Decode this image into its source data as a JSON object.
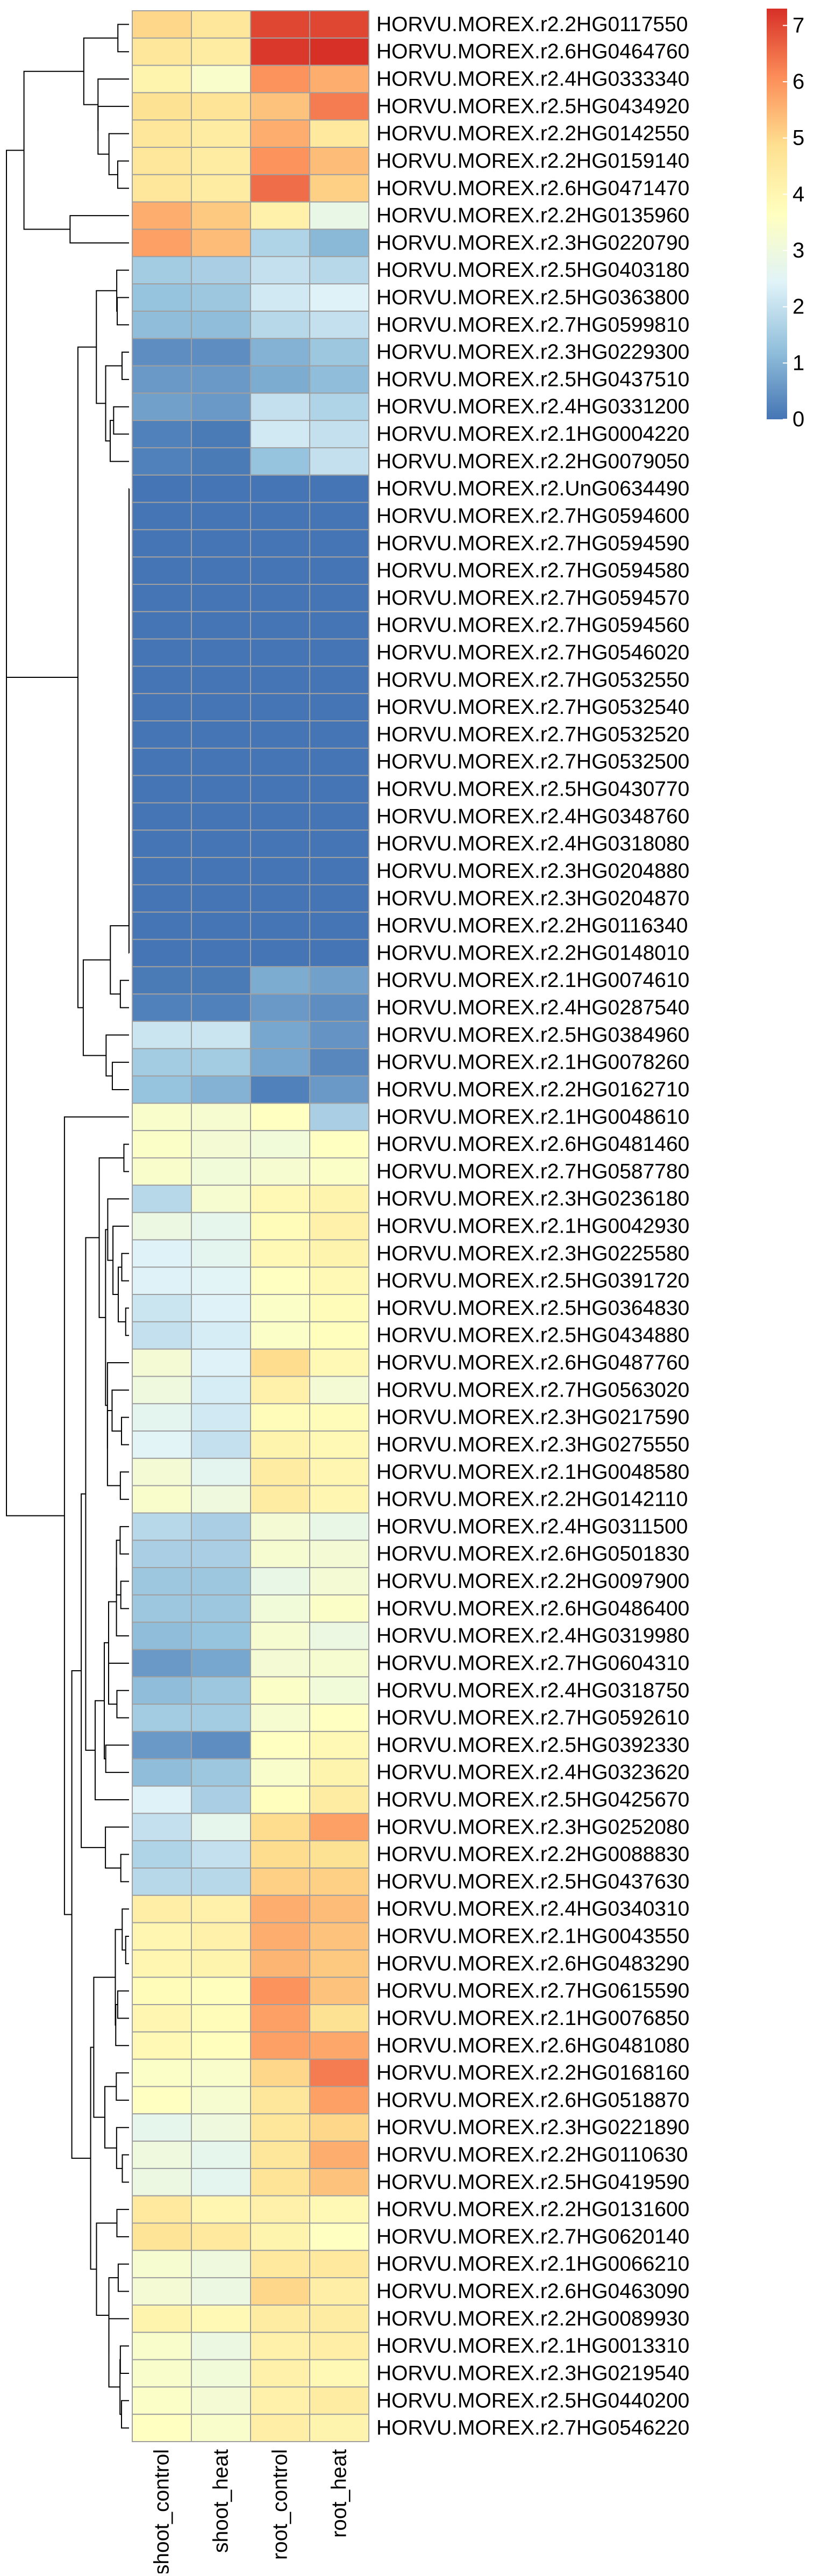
{
  "chart_data": {
    "type": "heatmap",
    "title": "",
    "xlabel": "",
    "ylabel": "",
    "columns": [
      "shoot_control",
      "shoot_heat",
      "root_control",
      "root_heat"
    ],
    "rows": [
      "HORVU.MOREX.r2.2HG0117550",
      "HORVU.MOREX.r2.6HG0464760",
      "HORVU.MOREX.r2.4HG0333340",
      "HORVU.MOREX.r2.5HG0434920",
      "HORVU.MOREX.r2.2HG0142550",
      "HORVU.MOREX.r2.2HG0159140",
      "HORVU.MOREX.r2.6HG0471470",
      "HORVU.MOREX.r2.2HG0135960",
      "HORVU.MOREX.r2.3HG0220790",
      "HORVU.MOREX.r2.5HG0403180",
      "HORVU.MOREX.r2.5HG0363800",
      "HORVU.MOREX.r2.7HG0599810",
      "HORVU.MOREX.r2.3HG0229300",
      "HORVU.MOREX.r2.5HG0437510",
      "HORVU.MOREX.r2.4HG0331200",
      "HORVU.MOREX.r2.1HG0004220",
      "HORVU.MOREX.r2.2HG0079050",
      "HORVU.MOREX.r2.UnG0634490",
      "HORVU.MOREX.r2.7HG0594600",
      "HORVU.MOREX.r2.7HG0594590",
      "HORVU.MOREX.r2.7HG0594580",
      "HORVU.MOREX.r2.7HG0594570",
      "HORVU.MOREX.r2.7HG0594560",
      "HORVU.MOREX.r2.7HG0546020",
      "HORVU.MOREX.r2.7HG0532550",
      "HORVU.MOREX.r2.7HG0532540",
      "HORVU.MOREX.r2.7HG0532520",
      "HORVU.MOREX.r2.7HG0532500",
      "HORVU.MOREX.r2.5HG0430770",
      "HORVU.MOREX.r2.4HG0348760",
      "HORVU.MOREX.r2.4HG0318080",
      "HORVU.MOREX.r2.3HG0204880",
      "HORVU.MOREX.r2.3HG0204870",
      "HORVU.MOREX.r2.2HG0116340",
      "HORVU.MOREX.r2.2HG0148010",
      "HORVU.MOREX.r2.1HG0074610",
      "HORVU.MOREX.r2.4HG0287540",
      "HORVU.MOREX.r2.5HG0384960",
      "HORVU.MOREX.r2.1HG0078260",
      "HORVU.MOREX.r2.2HG0162710",
      "HORVU.MOREX.r2.1HG0048610",
      "HORVU.MOREX.r2.6HG0481460",
      "HORVU.MOREX.r2.7HG0587780",
      "HORVU.MOREX.r2.3HG0236180",
      "HORVU.MOREX.r2.1HG0042930",
      "HORVU.MOREX.r2.3HG0225580",
      "HORVU.MOREX.r2.5HG0391720",
      "HORVU.MOREX.r2.5HG0364830",
      "HORVU.MOREX.r2.5HG0434880",
      "HORVU.MOREX.r2.6HG0487760",
      "HORVU.MOREX.r2.7HG0563020",
      "HORVU.MOREX.r2.3HG0217590",
      "HORVU.MOREX.r2.3HG0275550",
      "HORVU.MOREX.r2.1HG0048580",
      "HORVU.MOREX.r2.2HG0142110",
      "HORVU.MOREX.r2.4HG0311500",
      "HORVU.MOREX.r2.6HG0501830",
      "HORVU.MOREX.r2.2HG0097900",
      "HORVU.MOREX.r2.6HG0486400",
      "HORVU.MOREX.r2.4HG0319980",
      "HORVU.MOREX.r2.7HG0604310",
      "HORVU.MOREX.r2.4HG0318750",
      "HORVU.MOREX.r2.7HG0592610",
      "HORVU.MOREX.r2.5HG0392330",
      "HORVU.MOREX.r2.4HG0323620",
      "HORVU.MOREX.r2.5HG0425670",
      "HORVU.MOREX.r2.3HG0252080",
      "HORVU.MOREX.r2.2HG0088830",
      "HORVU.MOREX.r2.5HG0437630",
      "HORVU.MOREX.r2.4HG0340310",
      "HORVU.MOREX.r2.1HG0043550",
      "HORVU.MOREX.r2.6HG0483290",
      "HORVU.MOREX.r2.7HG0615590",
      "HORVU.MOREX.r2.1HG0076850",
      "HORVU.MOREX.r2.6HG0481080",
      "HORVU.MOREX.r2.2HG0168160",
      "HORVU.MOREX.r2.6HG0518870",
      "HORVU.MOREX.r2.3HG0221890",
      "HORVU.MOREX.r2.2HG0110630",
      "HORVU.MOREX.r2.5HG0419590",
      "HORVU.MOREX.r2.2HG0131600",
      "HORVU.MOREX.r2.7HG0620140",
      "HORVU.MOREX.r2.1HG0066210",
      "HORVU.MOREX.r2.6HG0463090",
      "HORVU.MOREX.r2.2HG0089930",
      "HORVU.MOREX.r2.1HG0013310",
      "HORVU.MOREX.r2.3HG0219540",
      "HORVU.MOREX.r2.5HG0440200",
      "HORVU.MOREX.r2.7HG0546220"
    ],
    "values": [
      [
        5.0,
        4.6,
        7.0,
        7.0
      ],
      [
        4.6,
        4.4,
        7.2,
        7.3
      ],
      [
        4.1,
        3.4,
        6.0,
        5.6
      ],
      [
        4.8,
        4.7,
        5.3,
        6.3
      ],
      [
        4.6,
        4.4,
        5.6,
        4.5
      ],
      [
        4.6,
        4.4,
        6.0,
        5.4
      ],
      [
        4.6,
        4.4,
        6.5,
        5.1
      ],
      [
        5.6,
        5.2,
        4.2,
        2.8
      ],
      [
        5.8,
        5.4,
        1.7,
        1.1
      ],
      [
        1.5,
        1.6,
        2.0,
        1.8
      ],
      [
        1.3,
        1.4,
        2.2,
        2.4
      ],
      [
        1.2,
        1.2,
        1.8,
        2.0
      ],
      [
        0.4,
        0.4,
        1.0,
        1.4
      ],
      [
        0.6,
        0.6,
        0.9,
        1.2
      ],
      [
        0.7,
        0.6,
        2.0,
        1.7
      ],
      [
        0.2,
        0.1,
        2.2,
        2.0
      ],
      [
        0.2,
        0.1,
        1.3,
        2.0
      ],
      [
        0,
        0,
        0,
        0
      ],
      [
        0,
        0,
        0,
        0
      ],
      [
        0,
        0,
        0,
        0
      ],
      [
        0,
        0,
        0,
        0
      ],
      [
        0,
        0,
        0,
        0
      ],
      [
        0,
        0,
        0,
        0
      ],
      [
        0,
        0,
        0,
        0
      ],
      [
        0,
        0,
        0,
        0
      ],
      [
        0,
        0,
        0,
        0
      ],
      [
        0,
        0,
        0,
        0
      ],
      [
        0,
        0,
        0,
        0
      ],
      [
        0,
        0,
        0,
        0
      ],
      [
        0,
        0,
        0,
        0
      ],
      [
        0,
        0,
        0,
        0
      ],
      [
        0,
        0,
        0,
        0
      ],
      [
        0,
        0,
        0,
        0
      ],
      [
        0,
        0,
        0,
        0
      ],
      [
        0,
        0,
        0,
        0
      ],
      [
        0.1,
        0.1,
        0.9,
        0.7
      ],
      [
        0.2,
        0.2,
        0.6,
        0.4
      ],
      [
        2.1,
        2.1,
        0.8,
        0.5
      ],
      [
        1.5,
        1.5,
        0.8,
        0.3
      ],
      [
        1.3,
        1.0,
        0.2,
        0.6
      ],
      [
        3.4,
        3.3,
        3.6,
        1.6
      ],
      [
        3.5,
        3.2,
        3.1,
        3.6
      ],
      [
        3.4,
        3.1,
        3.3,
        3.5
      ],
      [
        1.8,
        3.3,
        3.9,
        4.1
      ],
      [
        2.9,
        2.7,
        3.8,
        4.2
      ],
      [
        2.4,
        2.6,
        3.9,
        4.1
      ],
      [
        2.4,
        2.5,
        3.6,
        3.9
      ],
      [
        2.1,
        2.4,
        3.5,
        3.8
      ],
      [
        2.0,
        2.3,
        3.5,
        3.7
      ],
      [
        3.2,
        2.4,
        4.9,
        3.9
      ],
      [
        3.0,
        2.3,
        4.2,
        3.2
      ],
      [
        2.6,
        2.2,
        3.8,
        3.8
      ],
      [
        2.5,
        2.0,
        4.1,
        3.9
      ],
      [
        3.2,
        2.6,
        4.4,
        4.0
      ],
      [
        3.4,
        3.0,
        4.4,
        4.0
      ],
      [
        1.8,
        1.6,
        3.2,
        2.8
      ],
      [
        1.6,
        1.6,
        3.3,
        3.2
      ],
      [
        1.4,
        1.4,
        2.8,
        3.2
      ],
      [
        1.4,
        1.4,
        3.1,
        3.5
      ],
      [
        1.2,
        1.3,
        3.3,
        2.9
      ],
      [
        0.6,
        0.8,
        3.2,
        3.3
      ],
      [
        1.2,
        1.4,
        3.5,
        3.1
      ],
      [
        1.5,
        1.5,
        3.3,
        3.6
      ],
      [
        0.6,
        0.4,
        3.6,
        3.9
      ],
      [
        1.2,
        1.4,
        3.4,
        4.1
      ],
      [
        2.4,
        1.6,
        3.7,
        4.4
      ],
      [
        2.0,
        2.7,
        4.9,
        5.8
      ],
      [
        1.7,
        2.0,
        4.9,
        4.8
      ],
      [
        1.8,
        1.8,
        5.1,
        5.1
      ],
      [
        4.3,
        4.2,
        5.6,
        5.4
      ],
      [
        4.0,
        4.2,
        5.6,
        5.3
      ],
      [
        4.0,
        4.1,
        5.5,
        5.2
      ],
      [
        3.8,
        3.7,
        6.0,
        5.3
      ],
      [
        4.0,
        3.8,
        5.8,
        4.8
      ],
      [
        3.9,
        3.7,
        5.8,
        5.7
      ],
      [
        3.5,
        3.4,
        5.0,
        6.3
      ],
      [
        3.6,
        3.3,
        4.6,
        5.8
      ],
      [
        2.7,
        3.0,
        4.6,
        5.0
      ],
      [
        3.0,
        2.7,
        4.6,
        5.6
      ],
      [
        2.9,
        2.6,
        4.7,
        5.3
      ],
      [
        4.5,
        4.0,
        4.2,
        3.9
      ],
      [
        4.7,
        4.5,
        4.1,
        3.6
      ],
      [
        3.3,
        3.0,
        4.5,
        4.5
      ],
      [
        3.2,
        2.9,
        5.0,
        4.3
      ],
      [
        4.1,
        3.9,
        4.4,
        4.4
      ],
      [
        3.4,
        2.9,
        4.2,
        4.3
      ],
      [
        3.4,
        3.1,
        4.2,
        3.9
      ],
      [
        3.5,
        3.2,
        4.2,
        4.4
      ],
      [
        3.6,
        3.4,
        4.3,
        4.1
      ]
    ],
    "color_scale": {
      "min": 0,
      "max": 7.3,
      "stops": [
        "#4575B4",
        "#91BFDB",
        "#E0F3F8",
        "#FFFFBF",
        "#FEE090",
        "#FC8D59",
        "#D73027"
      ]
    },
    "legend": {
      "position": "top-right",
      "ticks": [
        "0",
        "1",
        "2",
        "3",
        "4",
        "5",
        "6",
        "7"
      ],
      "tick_values": [
        0,
        1,
        2,
        3,
        4,
        5,
        6,
        7
      ]
    },
    "grid": true,
    "cell_border_color": "#A0A0A0",
    "row_dendrogram": true,
    "column_dendrogram": false
  }
}
